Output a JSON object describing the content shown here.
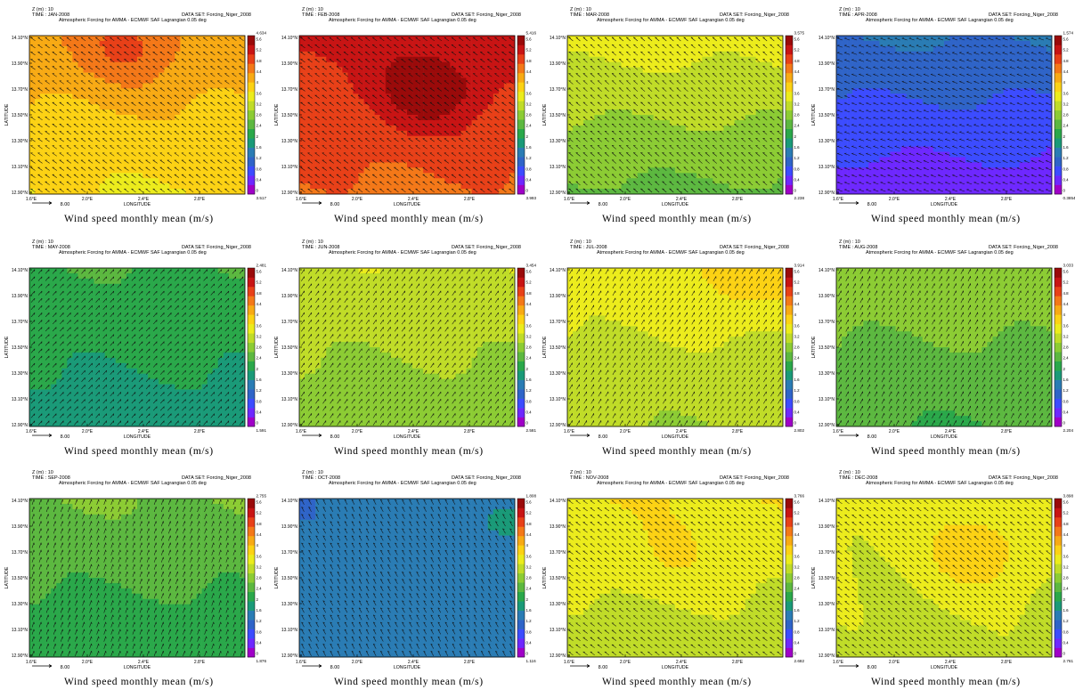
{
  "figure": {
    "z_label": "Z (m) : 10",
    "dataset_label": "DATA SET: Forcing_Niger_2008",
    "title": "Atmospheric Forcing for AMMA - ECMWF SAF Lagrangian 0.05 deg",
    "caption": "Wind speed monthly mean (m/s)",
    "xlabel": "LONGITUDE",
    "ylabel": "LATITUDE",
    "x_ticks": [
      "1.6°E",
      "2.0°E",
      "2.4°E",
      "2.8°E"
    ],
    "y_ticks": [
      "14.10°N",
      "13.90°N",
      "13.70°N",
      "13.50°N",
      "13.30°N",
      "13.10°N",
      "12.90°N"
    ],
    "colorbar_ticks": [
      "5.6",
      "5.2",
      "4.8",
      "4.4",
      "4",
      "3.6",
      "3.2",
      "2.8",
      "2.4",
      "2",
      "1.6",
      "1.2",
      "0.8",
      "0.4",
      "0"
    ],
    "colorbar_colors": [
      "#a000c8",
      "#6e28ff",
      "#3c4cff",
      "#2f64c8",
      "#2a7cb4",
      "#1a9a78",
      "#2aa84a",
      "#5cb840",
      "#8ccc34",
      "#c0dc28",
      "#ecec1c",
      "#fcd214",
      "#f8aa14",
      "#f47818",
      "#e84018",
      "#c81414",
      "#9a0a0a"
    ],
    "reference_vector_label": "8.00"
  },
  "chart_data": [
    {
      "type": "heatmap",
      "panel": "JAN",
      "time_label": "TIME : JAN-2008",
      "vmax": "4.634",
      "vmin": "3.517",
      "base": 3.9,
      "gradient": 0.6,
      "bump": 0.5,
      "bump_x": 0.45,
      "bump_y": 0.9,
      "dir": [
        -0.8,
        0.55
      ]
    },
    {
      "type": "heatmap",
      "panel": "FEB",
      "time_label": "TIME : FEB-2008",
      "vmax": "5.416",
      "vmin": "3.993",
      "base": 4.8,
      "gradient": 0.5,
      "bump": 0.7,
      "bump_x": 0.6,
      "bump_y": 0.65,
      "dir": [
        -0.8,
        0.55
      ]
    },
    {
      "type": "heatmap",
      "panel": "MAR",
      "time_label": "TIME : MAR-2008",
      "vmax": "3.575",
      "vmin": "2.238",
      "base": 3.0,
      "gradient": 0.9,
      "bump": 0.0,
      "bump_x": 0.5,
      "bump_y": 0.5,
      "dir": [
        -0.6,
        0.5
      ]
    },
    {
      "type": "heatmap",
      "panel": "APR",
      "time_label": "TIME : APR-2008",
      "vmax": "1.574",
      "vmin": "0.3854",
      "base": 0.9,
      "gradient": 0.9,
      "bump": 0.0,
      "bump_x": 0.5,
      "bump_y": 0.5,
      "dir": [
        -0.9,
        0.3
      ]
    },
    {
      "type": "heatmap",
      "panel": "MAY",
      "time_label": "TIME : MAY-2008",
      "vmax": "2.481",
      "vmin": "1.591",
      "base": 2.05,
      "gradient": 0.5,
      "bump": 0.0,
      "bump_x": 0.5,
      "bump_y": 0.5,
      "dir": [
        0.6,
        0.7
      ]
    },
    {
      "type": "heatmap",
      "panel": "JUN",
      "time_label": "TIME : JUN-2008",
      "vmax": "3.454",
      "vmin": "2.581",
      "base": 3.0,
      "gradient": 0.5,
      "bump": 0.0,
      "bump_x": 0.5,
      "bump_y": 0.5,
      "dir": [
        0.5,
        0.75
      ]
    },
    {
      "type": "heatmap",
      "panel": "JUL",
      "time_label": "TIME : JUL-2008",
      "vmax": "3.914",
      "vmin": "2.802",
      "base": 3.25,
      "gradient": 0.55,
      "bump": 0.4,
      "bump_x": 0.85,
      "bump_y": 0.95,
      "dir": [
        0.45,
        0.8
      ]
    },
    {
      "type": "heatmap",
      "panel": "AUG",
      "time_label": "TIME : AUG-2008",
      "vmax": "3.033",
      "vmin": "2.204",
      "base": 2.6,
      "gradient": 0.6,
      "bump": 0.0,
      "bump_x": 0.5,
      "bump_y": 0.5,
      "dir": [
        0.4,
        0.8
      ]
    },
    {
      "type": "heatmap",
      "panel": "SEP",
      "time_label": "TIME : SEP-2008",
      "vmax": "2.755",
      "vmin": "1.876",
      "base": 2.35,
      "gradient": 0.6,
      "bump": 0.0,
      "bump_x": 0.5,
      "bump_y": 0.5,
      "dir": [
        0.3,
        0.85
      ]
    },
    {
      "type": "heatmap",
      "panel": "OCT",
      "time_label": "TIME : OCT-2008",
      "vmax": "1.808",
      "vmin": "1.116",
      "base": 1.45,
      "gradient": -0.2,
      "bump": 0.3,
      "bump_x": 0.9,
      "bump_y": 0.85,
      "dir": [
        -0.4,
        0.7
      ]
    },
    {
      "type": "heatmap",
      "panel": "NOV",
      "time_label": "TIME : NOV-2008",
      "vmax": "3.766",
      "vmin": "2.682",
      "base": 3.35,
      "gradient": 0.5,
      "bump": 0.2,
      "bump_x": 0.5,
      "bump_y": 0.6,
      "dir": [
        -0.7,
        0.5
      ]
    },
    {
      "type": "heatmap",
      "panel": "DEC",
      "time_label": "TIME : DEC-2008",
      "vmax": "3.898",
      "vmin": "2.761",
      "base": 3.3,
      "gradient": 0.2,
      "bump": 0.5,
      "bump_x": 0.65,
      "bump_y": 0.65,
      "dir": [
        -0.75,
        0.55
      ]
    }
  ]
}
